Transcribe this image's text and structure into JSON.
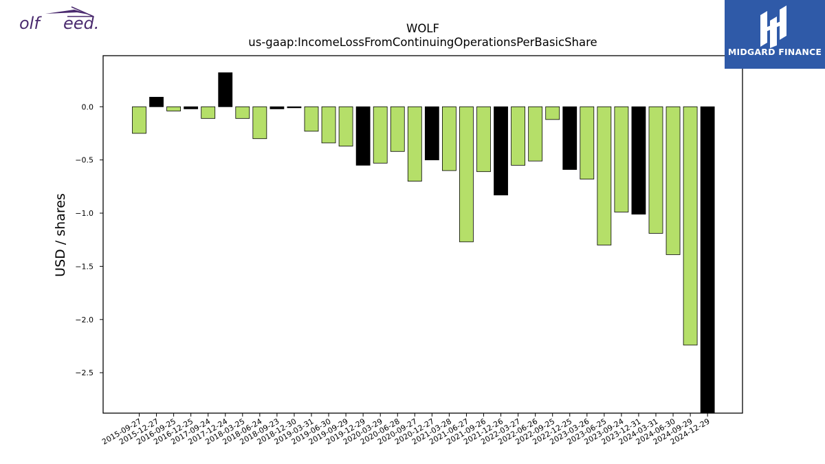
{
  "logo_left": {
    "text": "olf    eed."
  },
  "logo_right": {
    "brand": "MIDGARD FINANCE"
  },
  "colors": {
    "fill_positive": "#000000",
    "fill_negative": "#b5df69",
    "edge": "#000000",
    "logo_purple": "#4a2a6e",
    "logo_blue": "#2f5aa8"
  },
  "chart_data": {
    "type": "bar",
    "title": "WOLF",
    "subtitle": "us-gaap:IncomeLossFromContinuingOperationsPerBasicShare",
    "xlabel": "",
    "ylabel": "USD / shares",
    "ylim": [
      -2.88,
      0.48
    ],
    "yticks": [
      0.0,
      -0.5,
      -1.0,
      -1.5,
      -2.0,
      -2.5
    ],
    "ytick_labels": [
      "0.0",
      "−0.5",
      "−1.0",
      "−1.5",
      "−2.0",
      "−2.5"
    ],
    "grid": false,
    "categories": [
      "2015-09-27",
      "2015-12-27",
      "2016-09-25",
      "2016-12-25",
      "2017-09-24",
      "2017-12-24",
      "2018-03-25",
      "2018-06-24",
      "2018-09-23",
      "2018-12-30",
      "2019-03-31",
      "2019-06-30",
      "2019-09-29",
      "2019-12-29",
      "2020-03-29",
      "2020-06-28",
      "2020-09-27",
      "2020-12-27",
      "2021-03-28",
      "2021-06-27",
      "2021-09-26",
      "2021-12-26",
      "2022-03-27",
      "2022-06-26",
      "2022-09-25",
      "2022-12-25",
      "2023-03-26",
      "2023-06-25",
      "2023-09-24",
      "2023-12-31",
      "2024-03-31",
      "2024-06-30",
      "2024-09-29",
      "2024-12-29"
    ],
    "values": [
      -0.25,
      0.09,
      -0.04,
      -0.02,
      -0.11,
      0.32,
      -0.11,
      -0.3,
      -0.02,
      -0.01,
      -0.23,
      -0.34,
      -0.37,
      -0.55,
      -0.53,
      -0.42,
      -0.7,
      -0.5,
      -0.6,
      -1.27,
      -0.61,
      -0.83,
      -0.55,
      -0.51,
      -0.12,
      -0.59,
      -0.68,
      -1.3,
      -0.99,
      -1.01,
      -1.19,
      -1.39,
      -2.24,
      -2.95
    ],
    "bar_highlight": [
      false,
      true,
      false,
      true,
      false,
      true,
      false,
      false,
      true,
      true,
      false,
      false,
      false,
      true,
      false,
      false,
      false,
      true,
      false,
      false,
      false,
      true,
      false,
      false,
      false,
      true,
      false,
      false,
      false,
      true,
      false,
      false,
      false,
      true
    ]
  }
}
